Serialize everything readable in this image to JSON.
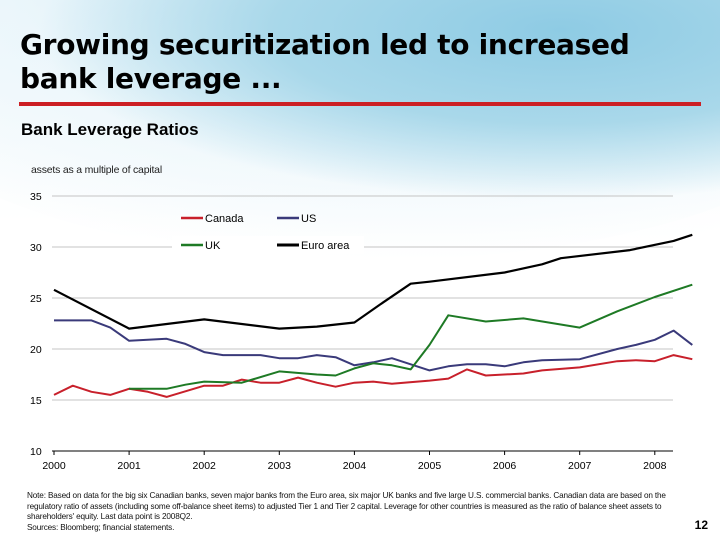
{
  "slide": {
    "title": "Growing securitization led to increased bank leverage ...",
    "subtitle": "Bank Leverage Ratios",
    "units_label": "assets as a multiple of capital",
    "note": "Note: Based on data for the big six Canadian banks, seven major banks from the Euro area, six major UK banks and five large U.S. commercial banks. Canadian data are based on the regulatory ratio of assets (including some off-balance sheet items) to adjusted Tier 1 and Tier 2 capital.  Leverage for other countries is measured as the ratio of balance sheet assets to shareholders' equity. Last data point is 2008Q2.",
    "sources": "Sources: Bloomberg; financial statements.",
    "page_number": "12",
    "accent_color": "#cc1f24"
  },
  "chart_data": {
    "type": "line",
    "title": "Bank Leverage Ratios",
    "ylabel": "assets as a multiple of capital",
    "xlabel": "",
    "ylim": [
      10,
      35
    ],
    "xlim": [
      2000,
      2008.5
    ],
    "yticks": [
      10,
      15,
      20,
      25,
      30,
      35
    ],
    "xticks": [
      "2000",
      "2001",
      "2002",
      "2003",
      "2004",
      "2005",
      "2006",
      "2007",
      "2008"
    ],
    "grid": true,
    "legend_position": "top-center",
    "series": [
      {
        "name": "Canada",
        "color": "#c8202b",
        "x": [
          2000,
          2000.25,
          2000.5,
          2000.75,
          2001,
          2001.25,
          2001.5,
          2002,
          2002.25,
          2002.5,
          2002.75,
          2003,
          2003.25,
          2003.5,
          2003.75,
          2004,
          2004.25,
          2004.5,
          2005,
          2005.25,
          2005.5,
          2005.75,
          2006.25,
          2006.5,
          2007,
          2007.5,
          2007.75,
          2008,
          2008.25,
          2008.5
        ],
        "values": [
          15.5,
          16.4,
          15.8,
          15.5,
          16.1,
          15.8,
          15.3,
          16.4,
          16.4,
          17.0,
          16.7,
          16.7,
          17.2,
          16.7,
          16.3,
          16.7,
          16.8,
          16.6,
          16.9,
          17.1,
          18.0,
          17.4,
          17.6,
          17.9,
          18.2,
          18.8,
          18.9,
          18.8,
          19.4,
          19.0
        ]
      },
      {
        "name": "US",
        "color": "#3a3a7a",
        "x": [
          2000,
          2000.5,
          2000.75,
          2001,
          2001.5,
          2001.75,
          2002,
          2002.25,
          2002.75,
          2003,
          2003.25,
          2003.5,
          2003.75,
          2004,
          2004.25,
          2004.5,
          2004.75,
          2005,
          2005.25,
          2005.5,
          2005.75,
          2006,
          2006.25,
          2006.5,
          2007,
          2007.5,
          2007.75,
          2008,
          2008.25,
          2008.5
        ],
        "values": [
          22.8,
          22.8,
          22.1,
          20.8,
          21.0,
          20.5,
          19.7,
          19.4,
          19.4,
          19.1,
          19.1,
          19.4,
          19.2,
          18.4,
          18.7,
          19.1,
          18.5,
          17.9,
          18.3,
          18.5,
          18.5,
          18.3,
          18.7,
          18.9,
          19.0,
          20.0,
          20.4,
          20.9,
          21.8,
          20.4
        ]
      },
      {
        "name": "UK",
        "color": "#1e7a25",
        "x": [
          2001,
          2001.5,
          2001.75,
          2002,
          2002.5,
          2003,
          2003.5,
          2003.75,
          2004,
          2004.25,
          2004.5,
          2004.75,
          2005,
          2005.25,
          2005.75,
          2006.25,
          2007,
          2007.5,
          2008,
          2008.5
        ],
        "values": [
          16.1,
          16.1,
          16.5,
          16.8,
          16.7,
          17.8,
          17.5,
          17.4,
          18.1,
          18.6,
          18.4,
          18.0,
          20.4,
          23.3,
          22.7,
          23.0,
          22.1,
          23.7,
          25.1,
          26.3
        ]
      },
      {
        "name": "Euro area",
        "color": "#000000",
        "x": [
          2000,
          2001,
          2002,
          2003,
          2003.5,
          2004,
          2004.33,
          2004.75,
          2005,
          2006,
          2006.5,
          2006.75,
          2007.67,
          2008.25,
          2008.5
        ],
        "values": [
          25.8,
          22.0,
          22.9,
          22.0,
          22.2,
          22.6,
          24.3,
          26.4,
          26.6,
          27.5,
          28.3,
          28.9,
          29.7,
          30.6,
          31.2
        ]
      }
    ]
  }
}
